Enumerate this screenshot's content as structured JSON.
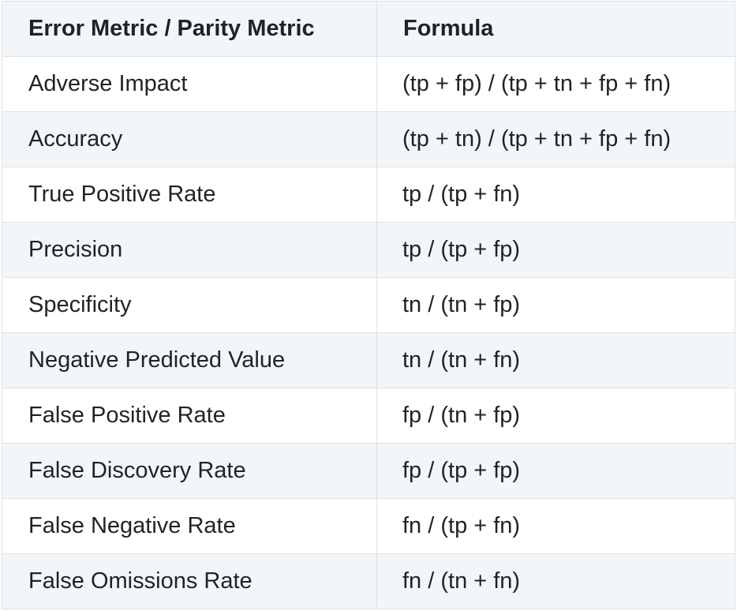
{
  "table": {
    "headers": [
      "Error Metric / Parity Metric",
      "Formula"
    ],
    "rows": [
      {
        "metric": "Adverse Impact",
        "formula": "(tp + fp) / (tp + tn + fp + fn)"
      },
      {
        "metric": "Accuracy",
        "formula": "(tp + tn) / (tp + tn + fp + fn)"
      },
      {
        "metric": "True Positive Rate",
        "formula": "tp / (tp + fn)"
      },
      {
        "metric": "Precision",
        "formula": "tp / (tp + fp)"
      },
      {
        "metric": "Specificity",
        "formula": "tn / (tn + fp)"
      },
      {
        "metric": "Negative Predicted Value",
        "formula": "tn / (tn + fn)"
      },
      {
        "metric": "False Positive Rate",
        "formula": "fp / (tn + fp)"
      },
      {
        "metric": "False Discovery Rate",
        "formula": "fp / (tp + fp)"
      },
      {
        "metric": "False Negative Rate",
        "formula": "fn / (tp + fn)"
      },
      {
        "metric": "False Omissions Rate",
        "formula": "fn / (tn + fn)"
      }
    ]
  }
}
